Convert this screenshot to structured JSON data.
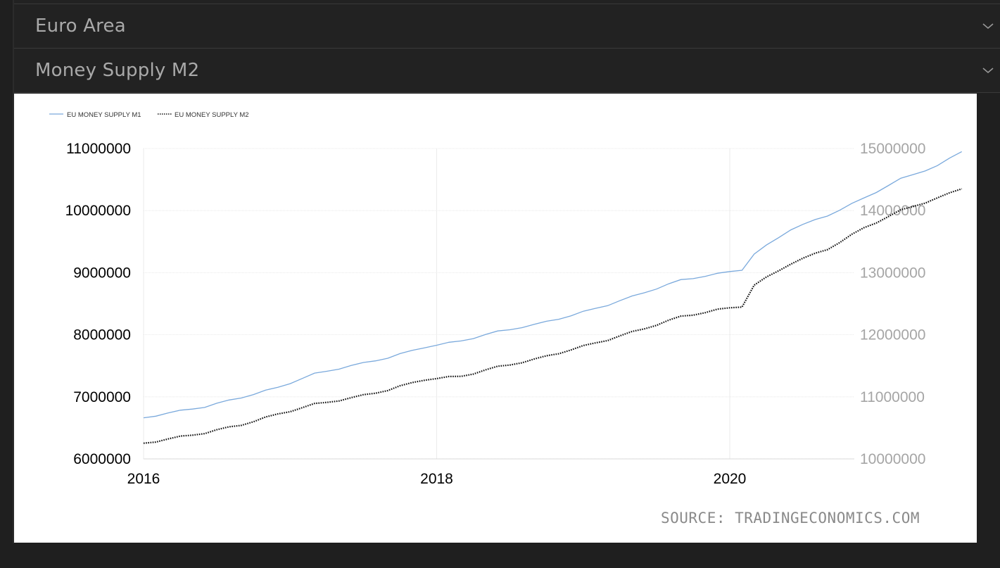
{
  "selectors": [
    {
      "label": "Euro Area",
      "icon": "chevron-down-icon"
    },
    {
      "label": "Money Supply M2",
      "icon": "chevron-down-icon"
    }
  ],
  "source": "SOURCE: TRADINGECONOMICS.COM",
  "colors": {
    "m1": "#7aa9dc",
    "m2": "#111111",
    "left_axis_text": "#000000",
    "right_axis_text": "#a5a5a5"
  },
  "chart_data": {
    "type": "line",
    "legend_position": "top-left",
    "grid": true,
    "x_ticks": [
      "2016",
      "2018",
      "2020"
    ],
    "x_range": [
      "2016-01",
      "2021-08"
    ],
    "y_left": {
      "ticks": [
        "11000000",
        "10000000",
        "9000000",
        "8000000",
        "7000000",
        "6000000"
      ],
      "range": [
        6000000,
        11000000
      ]
    },
    "y_right": {
      "ticks": [
        "15000000",
        "14000000",
        "13000000",
        "12000000",
        "11000000",
        "10000000"
      ],
      "range": [
        10000000,
        15000000
      ]
    },
    "series": [
      {
        "name": "EU MONEY SUPPLY M1",
        "axis": "left",
        "style": "solid",
        "points": [
          [
            "2016-01",
            6660000
          ],
          [
            "2016-03",
            6740000
          ],
          [
            "2016-06",
            6840000
          ],
          [
            "2016-09",
            6990000
          ],
          [
            "2016-12",
            7150000
          ],
          [
            "2017-03",
            7370000
          ],
          [
            "2017-06",
            7500000
          ],
          [
            "2017-09",
            7630000
          ],
          [
            "2017-12",
            7800000
          ],
          [
            "2018-03",
            7900000
          ],
          [
            "2018-06",
            8050000
          ],
          [
            "2018-09",
            8160000
          ],
          [
            "2018-12",
            8310000
          ],
          [
            "2019-03",
            8480000
          ],
          [
            "2019-06",
            8680000
          ],
          [
            "2019-09",
            8880000
          ],
          [
            "2019-12",
            8980000
          ],
          [
            "2020-02",
            9050000
          ],
          [
            "2020-03",
            9300000
          ],
          [
            "2020-06",
            9700000
          ],
          [
            "2020-09",
            9920000
          ],
          [
            "2020-12",
            10200000
          ],
          [
            "2021-03",
            10510000
          ],
          [
            "2021-06",
            10720000
          ],
          [
            "2021-08",
            10950000
          ]
        ]
      },
      {
        "name": "EU MONEY SUPPLY M2",
        "axis": "right",
        "style": "dotted",
        "points": [
          [
            "2016-01",
            10250000
          ],
          [
            "2016-03",
            10320000
          ],
          [
            "2016-06",
            10420000
          ],
          [
            "2016-09",
            10550000
          ],
          [
            "2016-12",
            10720000
          ],
          [
            "2017-03",
            10880000
          ],
          [
            "2017-06",
            10980000
          ],
          [
            "2017-09",
            11110000
          ],
          [
            "2017-12",
            11280000
          ],
          [
            "2018-03",
            11330000
          ],
          [
            "2018-06",
            11480000
          ],
          [
            "2018-09",
            11600000
          ],
          [
            "2018-12",
            11760000
          ],
          [
            "2019-03",
            11920000
          ],
          [
            "2019-06",
            12100000
          ],
          [
            "2019-09",
            12290000
          ],
          [
            "2019-12",
            12400000
          ],
          [
            "2020-02",
            12460000
          ],
          [
            "2020-03",
            12800000
          ],
          [
            "2020-06",
            13150000
          ],
          [
            "2020-09",
            13380000
          ],
          [
            "2020-12",
            13720000
          ],
          [
            "2021-03",
            14000000
          ],
          [
            "2021-06",
            14200000
          ],
          [
            "2021-08",
            14350000
          ]
        ]
      }
    ]
  }
}
